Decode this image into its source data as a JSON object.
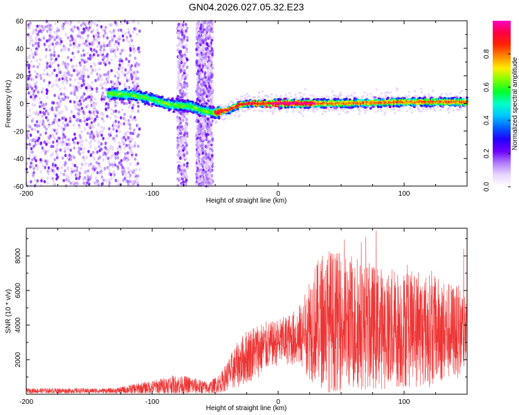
{
  "title": "GN04.2026.027.05.32.E23",
  "colors": {
    "snr_line": "#ee3333",
    "axis": "#000000",
    "colormap": [
      "#ffffff",
      "#e9d6ff",
      "#9e5cff",
      "#6d00ff",
      "#2a00ff",
      "#0044ff",
      "#00b7ff",
      "#00ffd6",
      "#00ff3c",
      "#7dff00",
      "#ffee00",
      "#ff8c00",
      "#ff2a00",
      "#ff0033",
      "#ff00b8"
    ]
  },
  "chart_data": [
    {
      "type": "heatmap",
      "name": "spectrogram",
      "xlabel": "Height of straight line (km)",
      "ylabel": "Frequency (Hz)",
      "xlim": [
        -200,
        150
      ],
      "ylim": [
        -60,
        60
      ],
      "xticks": [
        -200,
        -100,
        0,
        100
      ],
      "yticks": [
        -60,
        -40,
        -20,
        0,
        20,
        40,
        60
      ],
      "xtick_labels": [
        "-200",
        "-100",
        "0",
        "100"
      ],
      "ytick_labels": [
        "-60",
        "-40",
        "-20",
        "0",
        "20",
        "40",
        "60"
      ],
      "colorbar": {
        "label": "Normalized spectral amplitude",
        "range": [
          0,
          1
        ],
        "ticks": [
          0,
          0.2,
          0.4,
          0.6,
          0.8
        ],
        "tick_labels": [
          "0.0",
          "0.2",
          "0.4",
          "0.6",
          "0.8"
        ]
      },
      "ridge": [
        {
          "x": -130,
          "f": 7
        },
        {
          "x": -115,
          "f": 6
        },
        {
          "x": -100,
          "f": 3
        },
        {
          "x": -85,
          "f": -1
        },
        {
          "x": -70,
          "f": -2
        },
        {
          "x": -60,
          "f": -5
        },
        {
          "x": -50,
          "f": -7
        },
        {
          "x": -40,
          "f": -5
        },
        {
          "x": -30,
          "f": -1
        },
        {
          "x": -20,
          "f": 0
        },
        {
          "x": 0,
          "f": 0
        },
        {
          "x": 50,
          "f": 0
        },
        {
          "x": 100,
          "f": 1
        },
        {
          "x": 150,
          "f": 1
        }
      ],
      "noise_regions": [
        {
          "x_from": -200,
          "x_to": -135,
          "density": "high"
        },
        {
          "x_from": -135,
          "x_to": -110,
          "density": "medium"
        },
        {
          "x_from": -80,
          "x_to": -72,
          "density": "medium"
        },
        {
          "x_from": -65,
          "x_to": -52,
          "density": "high"
        }
      ]
    },
    {
      "type": "line",
      "name": "snr",
      "xlabel": "Height of straight line (km)",
      "ylabel": "SNR (10 * v/v)",
      "xlim": [
        -200,
        150
      ],
      "ylim": [
        0,
        9600
      ],
      "xticks": [
        -200,
        -100,
        0,
        100
      ],
      "yticks": [
        2000,
        4000,
        6000,
        8000
      ],
      "xtick_labels": [
        "-200",
        "-100",
        "0",
        "100"
      ],
      "ytick_labels": [
        "2000",
        "4000",
        "6000",
        "8000"
      ],
      "envelope": [
        {
          "x": -200,
          "base": 200,
          "amp": 150
        },
        {
          "x": -130,
          "base": 200,
          "amp": 150
        },
        {
          "x": -115,
          "base": 300,
          "amp": 300
        },
        {
          "x": -100,
          "base": 400,
          "amp": 400
        },
        {
          "x": -85,
          "base": 550,
          "amp": 550
        },
        {
          "x": -70,
          "base": 500,
          "amp": 550
        },
        {
          "x": -55,
          "base": 350,
          "amp": 350
        },
        {
          "x": -45,
          "base": 700,
          "amp": 600
        },
        {
          "x": -35,
          "base": 1500,
          "amp": 1200
        },
        {
          "x": -25,
          "base": 2200,
          "amp": 1600
        },
        {
          "x": -15,
          "base": 2600,
          "amp": 1600
        },
        {
          "x": -5,
          "base": 2900,
          "amp": 1300
        },
        {
          "x": 10,
          "base": 3200,
          "amp": 1500
        },
        {
          "x": 20,
          "base": 3400,
          "amp": 2000
        },
        {
          "x": 25,
          "base": 4000,
          "amp": 3200
        },
        {
          "x": 40,
          "base": 4300,
          "amp": 4200
        },
        {
          "x": 60,
          "base": 4000,
          "amp": 3800
        },
        {
          "x": 90,
          "base": 3800,
          "amp": 3500
        },
        {
          "x": 120,
          "base": 3700,
          "amp": 3300
        },
        {
          "x": 150,
          "base": 3600,
          "amp": 2500
        }
      ]
    }
  ]
}
